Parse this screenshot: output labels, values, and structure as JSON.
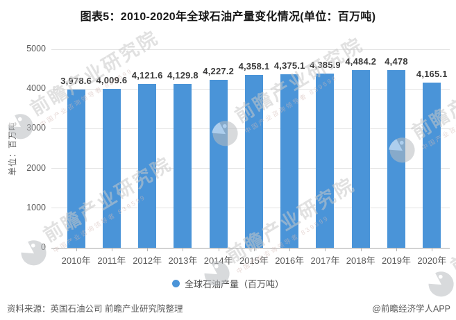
{
  "chart_data": {
    "type": "bar",
    "title": "图表5：2010-2020年全球石油产量变化情况(单位：百万吨)",
    "categories": [
      "2010年",
      "2011年",
      "2012年",
      "2013年",
      "2014年",
      "2015年",
      "2016年",
      "2017年",
      "2018年",
      "2019年",
      "2020年"
    ],
    "values": [
      3978.6,
      4009.6,
      4121.6,
      4129.8,
      4227.2,
      4358.1,
      4375.1,
      4385.9,
      4484.2,
      4478,
      4165.1
    ],
    "value_labels": [
      "3,978.6",
      "4,009.6",
      "4,121.6",
      "4,129.8",
      "4,227.2",
      "4,358.1",
      "4,375.1",
      "4,385.9",
      "4,484.2",
      "4,478",
      "4,165.1"
    ],
    "xlabel": "",
    "ylabel": "单位：百万吨",
    "ylim": [
      0,
      5000
    ],
    "yticks": [
      0,
      1000,
      2000,
      3000,
      4000,
      5000
    ],
    "ytick_labels": [
      "0",
      "1000",
      "2000",
      "3000",
      "4000",
      "5000"
    ],
    "grid": true,
    "legend": [
      "全球石油产量（百万吨）"
    ],
    "legend_position": "bottom",
    "bar_color": "#4A94D8"
  },
  "footer": {
    "source": "资料来源：英国石油公司 前瞻产业研究院整理",
    "credit": "@前瞻经济学人APP"
  },
  "watermark": {
    "main": "前瞻产业研究院",
    "sub": "中国产业咨询领导者 839599",
    "text_color": "#c9c9c9",
    "logo_color": "#b9bcc0"
  }
}
